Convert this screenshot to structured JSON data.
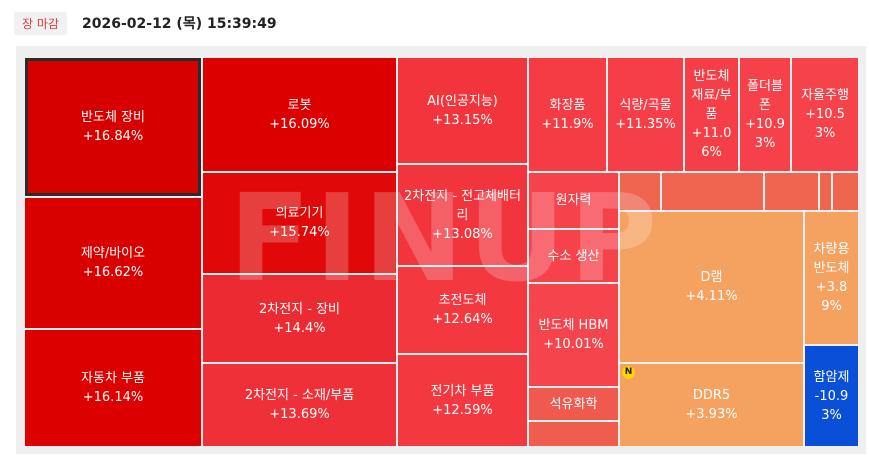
{
  "header": {
    "badge": "장 마감",
    "datetime": "2026-02-12 (목) 15:39:49"
  },
  "watermark": "FINUP",
  "tiles": [
    {
      "name": "반도체 장비",
      "change": "+16.84%",
      "color": "#d70000"
    },
    {
      "name": "제약/바이오",
      "change": "+16.62%",
      "color": "#d90000"
    },
    {
      "name": "자동차 부품",
      "change": "+16.14%",
      "color": "#dc0000"
    },
    {
      "name": "로봇",
      "change": "+16.09%",
      "color": "#dc0000"
    },
    {
      "name": "의료기기",
      "change": "+15.74%",
      "color": "#e00808"
    },
    {
      "name": "2차전지 - 장비",
      "change": "+14.4%",
      "color": "#ec2a32"
    },
    {
      "name": "2차전지 - 소재/부품",
      "change": "+13.69%",
      "color": "#ef3039"
    },
    {
      "name": "AI(인공지능)",
      "change": "+13.15%",
      "color": "#f2343d"
    },
    {
      "name": "2차전지 - 전고체배터리",
      "change": "+13.08%",
      "color": "#f2343d"
    },
    {
      "name": "초전도체",
      "change": "+12.64%",
      "color": "#f33840"
    },
    {
      "name": "전기차 부품",
      "change": "+12.59%",
      "color": "#f33840"
    },
    {
      "name": "화장품",
      "change": "+11.9%",
      "color": "#f53c45"
    },
    {
      "name": "식량/곡물",
      "change": "+11.35%",
      "color": "#f53e47"
    },
    {
      "name": "반도체 재료/부품",
      "change": "+11.06%",
      "color": "#f53e47"
    },
    {
      "name": "폴더블폰",
      "change": "+10.93%",
      "color": "#f6404a"
    },
    {
      "name": "자율주행",
      "change": "+10.53%",
      "color": "#f6424b"
    },
    {
      "name": "원자력",
      "color": "#f6424b"
    },
    {
      "name": "수소 생산",
      "color": "#f6424b"
    },
    {
      "name": "반도체 HBM",
      "change": "+10.01%",
      "color": "#f6444c"
    },
    {
      "name": "석유화학",
      "color": "#f05a4e"
    },
    {
      "color": "#ef5d4f"
    },
    {
      "color": "#ef6550"
    },
    {
      "color": "#ef6550"
    },
    {
      "color": "#ef6550"
    },
    {
      "color": "#ef6550"
    },
    {
      "color": "#ef6550"
    },
    {
      "name": "D램",
      "change": "+4.11%",
      "color": "#f5a160"
    },
    {
      "name": "DDR5",
      "change": "+3.93%",
      "color": "#f5a160",
      "badge": "N"
    },
    {
      "name": "차량용 반도체",
      "change": "+3.89%",
      "color": "#f5a160"
    },
    {
      "name": "함암제",
      "change": "-10.93%",
      "color": "#0a4fd8"
    }
  ]
}
